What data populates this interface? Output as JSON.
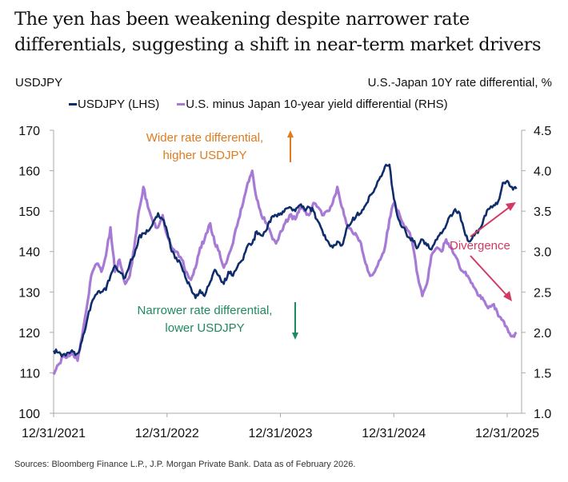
{
  "title": "The yen has been weakening despite narrower rate differentials, suggesting a shift in near-term market drivers",
  "source": "Sources: Bloomberg Finance L.P., J.P. Morgan Private Bank. Data as of February 2026.",
  "colors": {
    "usdjpy": "#0f2d6b",
    "differential": "#a77ad6",
    "wider_annotation": "#e07b20",
    "narrower_annotation": "#1f8a5f",
    "divergence_annotation": "#d23a64",
    "axis": "#aaaaaa",
    "text": "#111111"
  },
  "chart_data": {
    "type": "line",
    "title": "The yen has been weakening despite narrower rate differentials, suggesting a shift in near-term market drivers",
    "left_axis_label": "USDJPY",
    "right_axis_label": "U.S.-Japan 10Y rate differential, %",
    "xlabel": "",
    "x_ticks": [
      "12/31/2021",
      "12/31/2022",
      "12/31/2023",
      "12/31/2024",
      "12/31/2025"
    ],
    "x_range": [
      2021.99,
      2026.1
    ],
    "y_left_ticks": [
      100,
      110,
      120,
      130,
      140,
      150,
      160,
      170
    ],
    "y_left_range": [
      100,
      170
    ],
    "y_right_ticks": [
      "1.0",
      "1.5",
      "2.0",
      "2.5",
      "3.0",
      "3.5",
      "4.0",
      "4.5"
    ],
    "y_right_range": [
      1.0,
      4.5
    ],
    "grid": false,
    "legend_position": "top",
    "series": [
      {
        "name": "USDJPY (LHS)",
        "axis": "left",
        "x": [
          2022.0,
          2022.04,
          2022.08,
          2022.13,
          2022.17,
          2022.21,
          2022.25,
          2022.29,
          2022.33,
          2022.38,
          2022.42,
          2022.46,
          2022.5,
          2022.54,
          2022.58,
          2022.63,
          2022.67,
          2022.71,
          2022.75,
          2022.79,
          2022.83,
          2022.88,
          2022.92,
          2022.96,
          2023.0,
          2023.04,
          2023.08,
          2023.13,
          2023.17,
          2023.21,
          2023.25,
          2023.29,
          2023.33,
          2023.38,
          2023.42,
          2023.46,
          2023.5,
          2023.54,
          2023.58,
          2023.63,
          2023.67,
          2023.71,
          2023.75,
          2023.79,
          2023.83,
          2023.88,
          2023.92,
          2023.96,
          2024.0,
          2024.04,
          2024.08,
          2024.13,
          2024.17,
          2024.21,
          2024.25,
          2024.29,
          2024.33,
          2024.38,
          2024.42,
          2024.46,
          2024.5,
          2024.54,
          2024.58,
          2024.63,
          2024.67,
          2024.71,
          2024.75,
          2024.79,
          2024.83,
          2024.88,
          2024.92,
          2024.96,
          2025.0,
          2025.04,
          2025.08,
          2025.13,
          2025.17,
          2025.21,
          2025.25,
          2025.29,
          2025.33,
          2025.38,
          2025.42,
          2025.46,
          2025.5,
          2025.54,
          2025.58,
          2025.63,
          2025.67,
          2025.71,
          2025.75,
          2025.79,
          2025.83,
          2025.88,
          2025.92,
          2025.96,
          2026.0,
          2026.04,
          2026.08
        ],
        "values": [
          115.5,
          115.0,
          114.5,
          115.0,
          115.2,
          114.8,
          118.0,
          122.5,
          127.0,
          129.5,
          130.0,
          130.5,
          134.0,
          136.5,
          135.0,
          133.5,
          137.0,
          139.0,
          143.5,
          144.5,
          145.0,
          147.5,
          149.5,
          148.0,
          145.0,
          140.0,
          138.5,
          136.0,
          133.0,
          131.0,
          128.5,
          130.5,
          129.0,
          132.5,
          135.5,
          134.0,
          132.0,
          135.0,
          134.0,
          137.0,
          138.0,
          141.5,
          142.0,
          145.0,
          144.0,
          145.5,
          148.5,
          149.0,
          149.5,
          150.5,
          151.0,
          150.0,
          151.5,
          150.5,
          151.0,
          150.0,
          147.5,
          144.0,
          142.5,
          141.0,
          142.5,
          141.5,
          145.5,
          147.5,
          149.0,
          149.5,
          151.5,
          154.0,
          155.5,
          158.5,
          161.0,
          161.5,
          153.0,
          148.0,
          146.0,
          143.5,
          142.5,
          141.0,
          143.0,
          141.5,
          140.5,
          143.0,
          144.5,
          146.5,
          149.0,
          150.5,
          149.5,
          144.0,
          142.5,
          144.0,
          145.5,
          148.0,
          150.5,
          151.5,
          152.5,
          157.0,
          157.5,
          156.0,
          155.5
        ]
      },
      {
        "name": "U.S. minus Japan 10-year yield differential (RHS)",
        "axis": "right",
        "x": [
          2022.0,
          2022.04,
          2022.08,
          2022.13,
          2022.17,
          2022.21,
          2022.25,
          2022.29,
          2022.33,
          2022.38,
          2022.42,
          2022.46,
          2022.5,
          2022.54,
          2022.58,
          2022.63,
          2022.67,
          2022.71,
          2022.75,
          2022.79,
          2022.83,
          2022.88,
          2022.92,
          2022.96,
          2023.0,
          2023.04,
          2023.08,
          2023.13,
          2023.17,
          2023.21,
          2023.25,
          2023.29,
          2023.33,
          2023.38,
          2023.42,
          2023.46,
          2023.5,
          2023.54,
          2023.58,
          2023.63,
          2023.67,
          2023.71,
          2023.75,
          2023.79,
          2023.83,
          2023.88,
          2023.92,
          2023.96,
          2024.0,
          2024.04,
          2024.08,
          2024.13,
          2024.17,
          2024.21,
          2024.25,
          2024.29,
          2024.33,
          2024.38,
          2024.42,
          2024.46,
          2024.5,
          2024.54,
          2024.58,
          2024.63,
          2024.67,
          2024.71,
          2024.75,
          2024.79,
          2024.83,
          2024.88,
          2024.92,
          2024.96,
          2025.0,
          2025.04,
          2025.08,
          2025.13,
          2025.17,
          2025.21,
          2025.25,
          2025.29,
          2025.33,
          2025.38,
          2025.42,
          2025.46,
          2025.5,
          2025.54,
          2025.58,
          2025.63,
          2025.67,
          2025.71,
          2025.75,
          2025.79,
          2025.83,
          2025.88,
          2025.92,
          2025.96,
          2026.0,
          2026.04,
          2026.08
        ],
        "values": [
          1.48,
          1.6,
          1.7,
          1.72,
          1.75,
          1.65,
          1.95,
          2.3,
          2.7,
          2.85,
          2.75,
          2.95,
          3.3,
          2.75,
          2.9,
          2.6,
          2.7,
          3.05,
          3.5,
          3.8,
          3.55,
          3.35,
          3.3,
          3.45,
          3.2,
          3.05,
          3.0,
          2.9,
          2.75,
          2.65,
          2.8,
          3.05,
          3.15,
          3.35,
          3.1,
          3.0,
          2.8,
          2.95,
          3.1,
          3.4,
          3.6,
          3.85,
          4.0,
          3.65,
          3.45,
          3.35,
          3.2,
          3.1,
          3.25,
          3.35,
          3.45,
          3.4,
          3.55,
          3.5,
          3.45,
          3.6,
          3.55,
          3.45,
          3.5,
          3.6,
          3.8,
          3.55,
          3.35,
          3.25,
          3.2,
          3.1,
          2.85,
          2.7,
          2.75,
          2.9,
          3.05,
          3.4,
          3.6,
          3.5,
          3.35,
          3.25,
          3.05,
          2.7,
          2.45,
          2.6,
          2.95,
          3.05,
          3.0,
          3.15,
          3.05,
          2.95,
          2.8,
          2.75,
          2.65,
          2.55,
          2.45,
          2.4,
          2.3,
          2.35,
          2.2,
          2.15,
          2.05,
          1.95,
          2.0
        ]
      }
    ],
    "annotations": [
      {
        "id": "wider",
        "text_lines": [
          "Wider rate differential,",
          "higher USDJPY"
        ],
        "arrow": "up"
      },
      {
        "id": "narrower",
        "text_lines": [
          "Narrower rate differential,",
          "lower USDJPY"
        ],
        "arrow": "down"
      },
      {
        "id": "divergence",
        "text": "Divergence",
        "arrows": [
          "up-right",
          "down-right"
        ]
      }
    ]
  },
  "legend": {
    "items": [
      {
        "label": "USDJPY (LHS)",
        "color_key": "usdjpy"
      },
      {
        "label": "U.S. minus Japan 10-year yield differential (RHS)",
        "color_key": "differential"
      }
    ]
  }
}
